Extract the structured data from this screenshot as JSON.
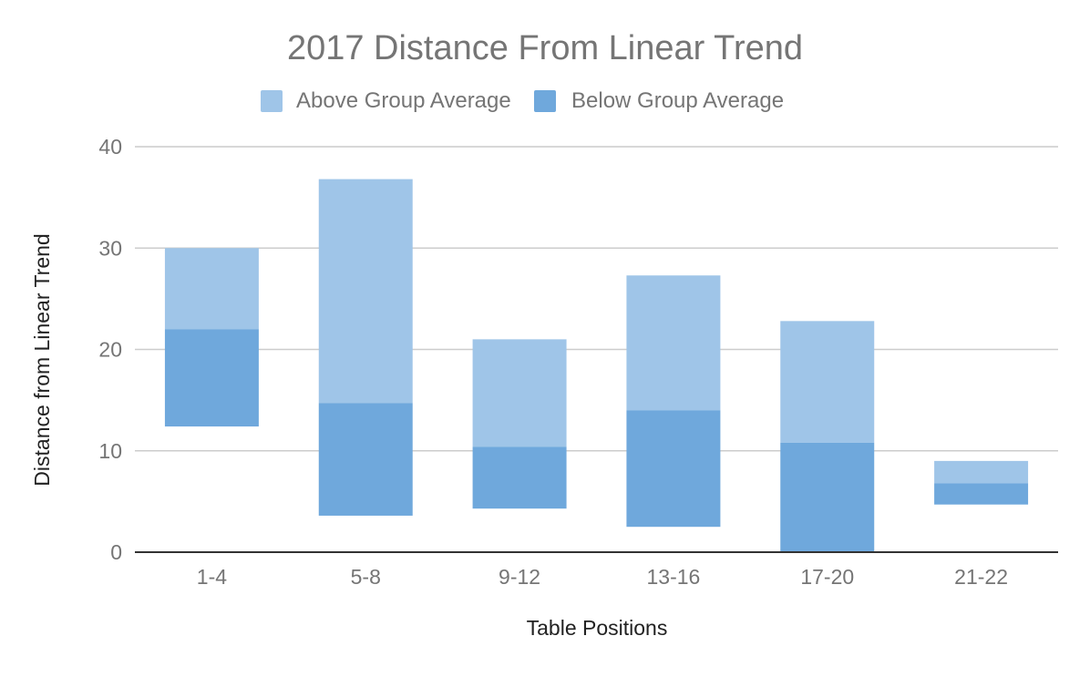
{
  "chart_data": {
    "type": "bar",
    "stacked": false,
    "floating": true,
    "title": "2017 Distance From Linear Trend",
    "xlabel": "Table Positions",
    "ylabel": "Distance from Linear Trend",
    "categories": [
      "1-4",
      "5-8",
      "9-12",
      "13-16",
      "17-20",
      "21-22"
    ],
    "ylim": [
      0,
      40
    ],
    "yticks": [
      0,
      10,
      20,
      30,
      40
    ],
    "grid": true,
    "legend_position": "top",
    "series": [
      {
        "name": "Above Group Average",
        "color": "#9fc5e8",
        "ranges": [
          [
            22,
            30
          ],
          [
            14.7,
            36.8
          ],
          [
            10.4,
            21
          ],
          [
            14,
            27.3
          ],
          [
            10.8,
            22.8
          ],
          [
            6.8,
            9
          ]
        ]
      },
      {
        "name": "Below Group Average",
        "color": "#6fa8dc",
        "ranges": [
          [
            12.4,
            22
          ],
          [
            3.6,
            14.7
          ],
          [
            4.3,
            10.4
          ],
          [
            2.5,
            14
          ],
          [
            0,
            10.8
          ],
          [
            4.7,
            6.8
          ]
        ]
      }
    ],
    "colors": {
      "text": "#757575",
      "title": "#757575",
      "axis_label": "#222222",
      "grid": "#cccccc",
      "baseline": "#333333"
    }
  }
}
